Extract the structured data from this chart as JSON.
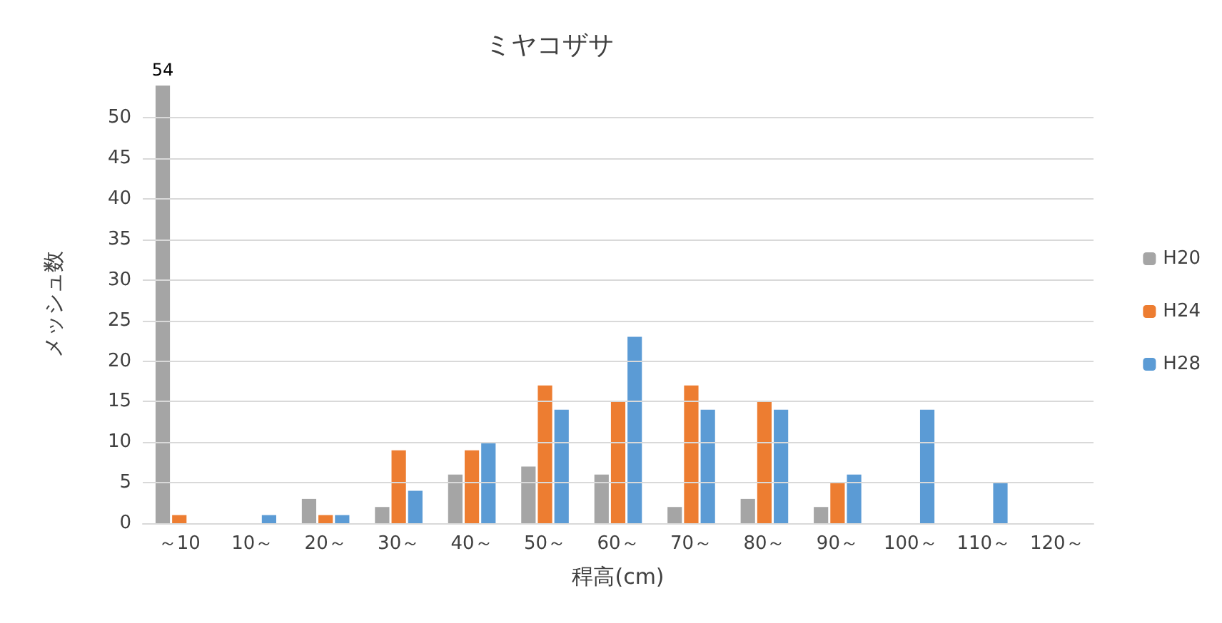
{
  "chart_data": {
    "type": "bar",
    "title": "ミヤコザサ",
    "xlabel": "稈高(cm)",
    "ylabel": "メッシュ数",
    "categories": [
      "～10",
      "10～",
      "20～",
      "30～",
      "40～",
      "50～",
      "60～",
      "70～",
      "80～",
      "90～",
      "100～",
      "110～",
      "120～"
    ],
    "series": [
      {
        "name": "H20",
        "color": "#a5a5a5",
        "values": [
          54,
          0,
          3,
          2,
          6,
          7,
          6,
          2,
          3,
          2,
          0,
          0,
          0
        ],
        "value_labels": [
          "54",
          null,
          null,
          null,
          null,
          null,
          null,
          null,
          null,
          null,
          null,
          null,
          null
        ]
      },
      {
        "name": "H24",
        "color": "#ed7d31",
        "values": [
          1,
          0,
          1,
          9,
          9,
          17,
          15,
          17,
          15,
          5,
          0,
          0,
          0
        ]
      },
      {
        "name": "H28",
        "color": "#5b9bd5",
        "values": [
          0,
          1,
          1,
          4,
          10,
          14,
          23,
          14,
          14,
          6,
          14,
          5,
          0
        ]
      }
    ],
    "ylim": [
      0,
      54
    ],
    "yticks": [
      0,
      5,
      10,
      15,
      20,
      25,
      30,
      35,
      40,
      45,
      50
    ],
    "grid": "y",
    "legend": "right"
  }
}
